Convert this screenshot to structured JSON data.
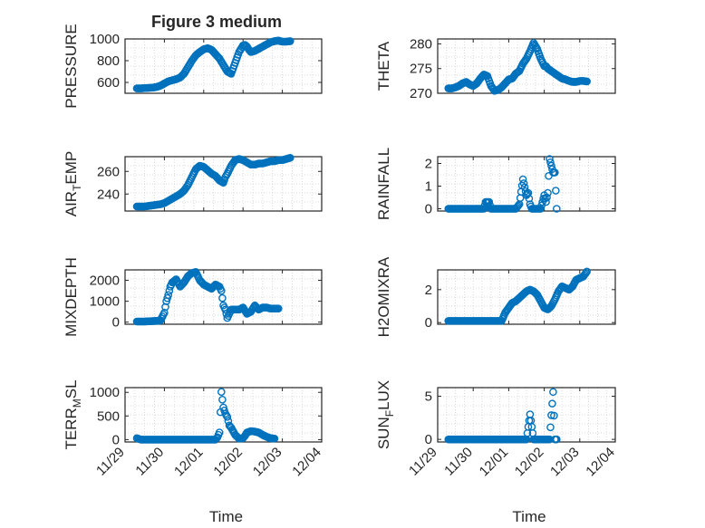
{
  "figure": {
    "title": "Figure 3 medium",
    "marker_color": "#0072BD",
    "grid": "minor dotted",
    "marker": "open-circle"
  },
  "chart_data": [
    {
      "type": "scatter",
      "ylabel": "PRESSURE",
      "ylabel_parts": [],
      "ylim": [
        500,
        1000
      ],
      "yticks": [
        600,
        800,
        1000
      ],
      "xlim": [
        "11/29",
        "12/04"
      ],
      "xticks": [],
      "xlabel": "",
      "x": [
        0.3,
        0.4,
        0.5,
        0.6,
        0.7,
        0.8,
        0.9,
        1.0,
        1.1,
        1.2,
        1.3,
        1.4,
        1.5,
        1.6,
        1.7,
        1.8,
        1.9,
        2.0,
        2.1,
        2.2,
        2.3,
        2.4,
        2.5,
        2.6,
        2.7,
        2.8,
        2.9,
        3.0,
        3.05,
        3.1,
        3.15,
        3.2,
        3.3,
        3.4,
        3.5,
        3.6,
        3.7,
        3.8,
        3.9,
        4.0,
        4.1,
        4.2
      ],
      "y": [
        545,
        545,
        548,
        550,
        552,
        558,
        570,
        590,
        610,
        620,
        630,
        645,
        680,
        740,
        800,
        850,
        880,
        905,
        915,
        900,
        860,
        820,
        760,
        700,
        680,
        780,
        880,
        940,
        945,
        930,
        900,
        880,
        890,
        910,
        930,
        950,
        970,
        980,
        985,
        975,
        975,
        980
      ]
    },
    {
      "type": "scatter",
      "ylabel": "THETA",
      "ylabel_parts": [],
      "ylim": [
        270,
        281
      ],
      "yticks": [
        270,
        275,
        280
      ],
      "xlim": [
        "11/29",
        "12/04"
      ],
      "xticks": [],
      "xlabel": "",
      "x": [
        0.3,
        0.4,
        0.5,
        0.6,
        0.7,
        0.8,
        0.9,
        1.0,
        1.1,
        1.2,
        1.3,
        1.4,
        1.5,
        1.6,
        1.7,
        1.8,
        1.9,
        2.0,
        2.1,
        2.2,
        2.3,
        2.4,
        2.5,
        2.6,
        2.7,
        2.8,
        2.9,
        3.0,
        3.05,
        3.1,
        3.2,
        3.3,
        3.4,
        3.5,
        3.6,
        3.7,
        3.8,
        3.9,
        4.0,
        4.1,
        4.2
      ],
      "y": [
        271,
        271,
        271.2,
        271.5,
        272,
        272.3,
        271.8,
        271.5,
        272,
        273,
        273.8,
        273.5,
        271.5,
        270.5,
        270.7,
        271.2,
        272,
        272.8,
        273,
        274,
        274.5,
        276,
        277,
        278.5,
        280.2,
        279,
        277,
        275.5,
        275.5,
        275,
        274.5,
        274,
        273.5,
        273,
        272.8,
        272.5,
        272.3,
        272.3,
        272.5,
        272.5,
        272.4
      ]
    },
    {
      "type": "scatter",
      "ylabel": "AIR_TEMP",
      "ylabel_parts": [
        "AIR",
        "T",
        "EMP"
      ],
      "ylim": [
        225,
        273
      ],
      "yticks": [
        240,
        260
      ],
      "xlim": [
        "11/29",
        "12/04"
      ],
      "xticks": [],
      "xlabel": "",
      "x": [
        0.3,
        0.4,
        0.5,
        0.6,
        0.7,
        0.8,
        0.9,
        1.0,
        1.1,
        1.2,
        1.3,
        1.4,
        1.5,
        1.6,
        1.7,
        1.8,
        1.9,
        2.0,
        2.1,
        2.2,
        2.3,
        2.4,
        2.5,
        2.55,
        2.6,
        2.7,
        2.8,
        2.9,
        3.0,
        3.1,
        3.2,
        3.3,
        3.4,
        3.5,
        3.6,
        3.7,
        3.8,
        3.9,
        4.0,
        4.1,
        4.2
      ],
      "y": [
        229,
        229,
        229,
        229.5,
        230,
        230.5,
        231,
        232,
        234,
        236,
        238,
        240,
        243,
        248,
        255,
        262,
        265,
        264,
        261,
        258,
        256,
        252,
        250,
        255,
        258,
        265,
        270,
        271,
        270,
        268,
        266,
        266,
        267,
        267,
        268,
        269,
        269,
        270,
        270,
        271,
        272
      ]
    },
    {
      "type": "scatter",
      "ylabel": "RAINFALL",
      "ylabel_parts": [],
      "ylim": [
        -0.1,
        2.3
      ],
      "yticks": [
        0,
        1,
        2
      ],
      "xlim": [
        "11/29",
        "12/04"
      ],
      "xticks": [],
      "xlabel": "",
      "x": [
        0.3,
        0.4,
        0.5,
        0.6,
        0.7,
        0.8,
        0.9,
        1.0,
        1.1,
        1.2,
        1.3,
        1.35,
        1.4,
        1.45,
        1.5,
        1.6,
        1.7,
        1.8,
        1.9,
        2.0,
        2.1,
        2.2,
        2.3,
        2.4,
        2.5,
        2.55,
        2.6,
        2.65,
        2.7,
        2.8,
        2.9,
        3.0,
        3.05,
        3.1,
        3.15,
        3.2,
        3.25,
        3.3,
        3.35
      ],
      "y": [
        0,
        0,
        0,
        0,
        0,
        0,
        0,
        0,
        0,
        0,
        0,
        0.3,
        0.3,
        0.3,
        0,
        0,
        0,
        0,
        0,
        0,
        0,
        0,
        0.2,
        1.3,
        0.6,
        0.7,
        0.2,
        0,
        0,
        0,
        0,
        0.6,
        0.3,
        0.7,
        2.2,
        1.9,
        1.6,
        1.6,
        0
      ]
    },
    {
      "type": "scatter",
      "ylabel": "MIXDEPTH",
      "ylabel_parts": [],
      "ylim": [
        -100,
        2500
      ],
      "yticks": [
        0,
        1000,
        2000
      ],
      "xlim": [
        "11/29",
        "12/04"
      ],
      "xticks": [],
      "xlabel": "",
      "x": [
        0.3,
        0.4,
        0.5,
        0.6,
        0.7,
        0.8,
        0.9,
        1.0,
        1.05,
        1.1,
        1.15,
        1.2,
        1.3,
        1.4,
        1.5,
        1.6,
        1.7,
        1.8,
        1.9,
        2.0,
        2.1,
        2.2,
        2.3,
        2.4,
        2.45,
        2.5,
        2.55,
        2.6,
        2.7,
        2.8,
        2.9,
        3.0,
        3.1,
        3.2,
        3.3,
        3.4,
        3.5,
        3.6,
        3.7,
        3.8,
        3.9
      ],
      "y": [
        30,
        30,
        30,
        40,
        50,
        60,
        80,
        450,
        1000,
        1300,
        1700,
        1900,
        2050,
        1700,
        1900,
        2200,
        2350,
        2400,
        2000,
        1800,
        1700,
        1600,
        1800,
        1700,
        1500,
        800,
        600,
        200,
        600,
        600,
        600,
        700,
        400,
        500,
        800,
        600,
        700,
        700,
        650,
        650,
        650
      ]
    },
    {
      "type": "scatter",
      "ylabel": "H2OMIXRA",
      "ylabel_parts": [],
      "ylim": [
        -0.1,
        3.2
      ],
      "yticks": [
        0,
        2
      ],
      "xlim": [
        "11/29",
        "12/04"
      ],
      "xticks": [],
      "xlabel": "",
      "x": [
        0.3,
        0.4,
        0.5,
        0.6,
        0.7,
        0.8,
        0.9,
        1.0,
        1.1,
        1.2,
        1.3,
        1.4,
        1.5,
        1.6,
        1.7,
        1.8,
        1.9,
        2.0,
        2.1,
        2.2,
        2.3,
        2.4,
        2.5,
        2.6,
        2.7,
        2.8,
        2.9,
        3.0,
        3.1,
        3.2,
        3.3,
        3.4,
        3.5,
        3.6,
        3.7,
        3.8,
        3.9,
        4.0,
        4.1,
        4.2
      ],
      "y": [
        0.1,
        0.1,
        0.1,
        0.1,
        0.1,
        0.1,
        0.1,
        0.1,
        0.1,
        0.1,
        0.1,
        0.1,
        0.1,
        0.1,
        0.1,
        0.1,
        0.6,
        0.9,
        1.2,
        1.3,
        1.5,
        1.7,
        1.9,
        2.0,
        1.9,
        1.7,
        1.3,
        0.9,
        0.8,
        1.0,
        1.4,
        1.9,
        2.2,
        2.1,
        2.0,
        2.2,
        2.6,
        2.7,
        2.8,
        3.1
      ]
    },
    {
      "type": "scatter",
      "ylabel": "TERR_MSL",
      "ylabel_parts": [
        "TERR",
        "M",
        "SL"
      ],
      "ylim": [
        -50,
        1100
      ],
      "yticks": [
        0,
        500,
        1000
      ],
      "xlim": [
        "11/29",
        "12/04"
      ],
      "xticks": [
        "11/29",
        "11/30",
        "12/01",
        "12/02",
        "12/03",
        "12/04"
      ],
      "xlabel": "Time",
      "x": [
        0.3,
        0.4,
        0.5,
        0.6,
        0.7,
        0.8,
        0.9,
        1.0,
        1.1,
        1.2,
        1.3,
        1.4,
        1.5,
        1.6,
        1.7,
        1.8,
        1.9,
        2.0,
        2.1,
        2.2,
        2.3,
        2.35,
        2.4,
        2.45,
        2.5,
        2.55,
        2.6,
        2.65,
        2.7,
        2.8,
        2.9,
        3.0,
        3.05,
        3.1,
        3.2,
        3.3,
        3.4,
        3.5,
        3.6,
        3.7,
        3.8
      ],
      "y": [
        30,
        0,
        0,
        0,
        0,
        0,
        0,
        0,
        0,
        0,
        0,
        0,
        0,
        0,
        0,
        0,
        0,
        0,
        0,
        0,
        0,
        50,
        150,
        1010,
        680,
        550,
        480,
        300,
        250,
        100,
        20,
        30,
        80,
        150,
        180,
        170,
        150,
        100,
        60,
        30,
        20
      ]
    },
    {
      "type": "scatter",
      "ylabel": "SUN_FLUX",
      "ylabel_parts": [
        "SUN",
        "F",
        "LUX"
      ],
      "ylim": [
        -0.3,
        6
      ],
      "yticks": [
        0,
        5
      ],
      "xlim": [
        "11/29",
        "12/04"
      ],
      "xticks": [
        "11/29",
        "11/30",
        "12/01",
        "12/02",
        "12/03",
        "12/04"
      ],
      "xlabel": "Time",
      "x": [
        0.3,
        0.4,
        0.5,
        0.6,
        0.7,
        0.8,
        0.9,
        1.0,
        1.1,
        1.2,
        1.3,
        1.4,
        1.5,
        1.6,
        1.7,
        1.8,
        1.9,
        2.0,
        2.1,
        2.2,
        2.3,
        2.4,
        2.5,
        2.6,
        2.7,
        2.8,
        2.9,
        3.0,
        3.1,
        3.15,
        3.2,
        3.25,
        3.3,
        3.35
      ],
      "y": [
        0,
        0,
        0,
        0,
        0,
        0,
        0,
        0,
        0,
        0,
        0,
        0,
        0,
        0,
        0,
        0,
        0,
        0,
        0,
        0,
        0,
        0,
        0,
        2.9,
        0,
        0,
        0,
        0,
        0,
        0,
        2.8,
        5.5,
        0,
        0
      ]
    }
  ]
}
